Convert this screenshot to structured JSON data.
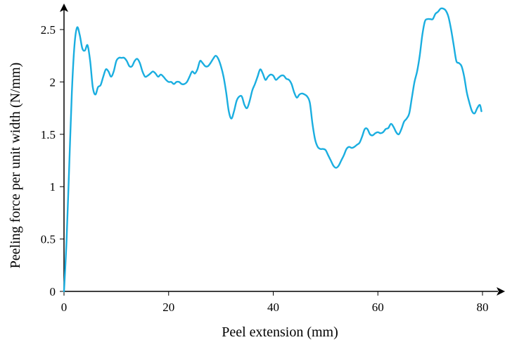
{
  "chart_data": {
    "type": "line",
    "title": "",
    "xlabel": "Peel extension  (mm)",
    "ylabel": "Peeling force per unit width (N/mm)",
    "xlim": [
      0,
      80
    ],
    "ylim": [
      0,
      2.5
    ],
    "grid": false,
    "x_ticks": [
      {
        "value": 0,
        "label": "0"
      },
      {
        "value": 20,
        "label": "20"
      },
      {
        "value": 40,
        "label": "40"
      },
      {
        "value": 60,
        "label": "60"
      },
      {
        "value": 80,
        "label": "80"
      }
    ],
    "y_ticks": [
      {
        "value": 0,
        "label": "0"
      },
      {
        "value": 0.5,
        "label": "0.5"
      },
      {
        "value": 1,
        "label": "1"
      },
      {
        "value": 1.5,
        "label": "1.5"
      },
      {
        "value": 2,
        "label": "2"
      },
      {
        "value": 2.5,
        "label": "2.5"
      }
    ],
    "series": [
      {
        "color": "#1AAEE0",
        "points": [
          [
            0,
            0
          ],
          [
            0.5,
            0.5
          ],
          [
            1,
            1.2
          ],
          [
            1.5,
            1.9
          ],
          [
            2,
            2.35
          ],
          [
            2.5,
            2.52
          ],
          [
            3,
            2.45
          ],
          [
            3.5,
            2.32
          ],
          [
            4,
            2.3
          ],
          [
            4.5,
            2.35
          ],
          [
            5,
            2.2
          ],
          [
            5.5,
            1.95
          ],
          [
            6,
            1.88
          ],
          [
            6.5,
            1.95
          ],
          [
            7,
            1.97
          ],
          [
            7.5,
            2.05
          ],
          [
            8,
            2.12
          ],
          [
            8.5,
            2.1
          ],
          [
            9,
            2.05
          ],
          [
            9.5,
            2.1
          ],
          [
            10,
            2.2
          ],
          [
            10.5,
            2.23
          ],
          [
            11,
            2.23
          ],
          [
            11.5,
            2.23
          ],
          [
            12,
            2.2
          ],
          [
            12.5,
            2.15
          ],
          [
            13,
            2.15
          ],
          [
            13.5,
            2.2
          ],
          [
            14,
            2.22
          ],
          [
            14.5,
            2.18
          ],
          [
            15,
            2.1
          ],
          [
            15.5,
            2.05
          ],
          [
            16,
            2.06
          ],
          [
            16.5,
            2.08
          ],
          [
            17,
            2.1
          ],
          [
            17.5,
            2.08
          ],
          [
            18,
            2.05
          ],
          [
            18.5,
            2.07
          ],
          [
            19,
            2.05
          ],
          [
            19.5,
            2.02
          ],
          [
            20,
            2.0
          ],
          [
            20.5,
            2.0
          ],
          [
            21,
            1.98
          ],
          [
            21.5,
            2.0
          ],
          [
            22,
            2.0
          ],
          [
            22.5,
            1.98
          ],
          [
            23,
            1.98
          ],
          [
            23.5,
            2.0
          ],
          [
            24,
            2.05
          ],
          [
            24.5,
            2.1
          ],
          [
            25,
            2.08
          ],
          [
            25.5,
            2.12
          ],
          [
            26,
            2.2
          ],
          [
            26.5,
            2.18
          ],
          [
            27,
            2.15
          ],
          [
            27.5,
            2.15
          ],
          [
            28,
            2.18
          ],
          [
            28.5,
            2.22
          ],
          [
            29,
            2.25
          ],
          [
            29.5,
            2.22
          ],
          [
            30,
            2.15
          ],
          [
            30.5,
            2.05
          ],
          [
            31,
            1.9
          ],
          [
            31.5,
            1.72
          ],
          [
            32,
            1.65
          ],
          [
            32.5,
            1.72
          ],
          [
            33,
            1.82
          ],
          [
            33.5,
            1.86
          ],
          [
            34,
            1.86
          ],
          [
            34.5,
            1.78
          ],
          [
            35,
            1.75
          ],
          [
            35.5,
            1.82
          ],
          [
            36,
            1.92
          ],
          [
            36.5,
            1.98
          ],
          [
            37,
            2.05
          ],
          [
            37.5,
            2.12
          ],
          [
            38,
            2.08
          ],
          [
            38.5,
            2.02
          ],
          [
            39,
            2.05
          ],
          [
            39.5,
            2.07
          ],
          [
            40,
            2.06
          ],
          [
            40.5,
            2.02
          ],
          [
            41,
            2.04
          ],
          [
            41.5,
            2.06
          ],
          [
            42,
            2.06
          ],
          [
            42.5,
            2.03
          ],
          [
            43,
            2.02
          ],
          [
            43.5,
            1.98
          ],
          [
            44,
            1.9
          ],
          [
            44.5,
            1.85
          ],
          [
            45,
            1.88
          ],
          [
            45.5,
            1.89
          ],
          [
            46,
            1.88
          ],
          [
            46.5,
            1.86
          ],
          [
            47,
            1.8
          ],
          [
            47.5,
            1.6
          ],
          [
            48,
            1.45
          ],
          [
            48.5,
            1.38
          ],
          [
            49,
            1.36
          ],
          [
            49.5,
            1.36
          ],
          [
            50,
            1.35
          ],
          [
            50.5,
            1.3
          ],
          [
            51,
            1.25
          ],
          [
            51.5,
            1.2
          ],
          [
            52,
            1.18
          ],
          [
            52.5,
            1.2
          ],
          [
            53,
            1.25
          ],
          [
            53.5,
            1.3
          ],
          [
            54,
            1.36
          ],
          [
            54.5,
            1.38
          ],
          [
            55,
            1.37
          ],
          [
            55.5,
            1.38
          ],
          [
            56,
            1.4
          ],
          [
            56.5,
            1.42
          ],
          [
            57,
            1.48
          ],
          [
            57.5,
            1.55
          ],
          [
            58,
            1.55
          ],
          [
            58.5,
            1.5
          ],
          [
            59,
            1.49
          ],
          [
            59.5,
            1.51
          ],
          [
            60,
            1.52
          ],
          [
            60.5,
            1.51
          ],
          [
            61,
            1.52
          ],
          [
            61.5,
            1.55
          ],
          [
            62,
            1.56
          ],
          [
            62.5,
            1.6
          ],
          [
            63,
            1.57
          ],
          [
            63.5,
            1.52
          ],
          [
            64,
            1.5
          ],
          [
            64.5,
            1.55
          ],
          [
            65,
            1.62
          ],
          [
            65.5,
            1.65
          ],
          [
            66,
            1.7
          ],
          [
            66.5,
            1.85
          ],
          [
            67,
            2.0
          ],
          [
            67.5,
            2.1
          ],
          [
            68,
            2.25
          ],
          [
            68.5,
            2.45
          ],
          [
            69,
            2.58
          ],
          [
            69.5,
            2.6
          ],
          [
            70,
            2.6
          ],
          [
            70.5,
            2.6
          ],
          [
            71,
            2.65
          ],
          [
            71.5,
            2.67
          ],
          [
            72,
            2.7
          ],
          [
            72.5,
            2.7
          ],
          [
            73,
            2.68
          ],
          [
            73.5,
            2.62
          ],
          [
            74,
            2.5
          ],
          [
            74.5,
            2.35
          ],
          [
            75,
            2.2
          ],
          [
            75.5,
            2.18
          ],
          [
            76,
            2.15
          ],
          [
            76.5,
            2.05
          ],
          [
            77,
            1.9
          ],
          [
            77.5,
            1.8
          ],
          [
            78,
            1.72
          ],
          [
            78.5,
            1.7
          ],
          [
            79,
            1.75
          ],
          [
            79.5,
            1.78
          ],
          [
            79.8,
            1.72
          ]
        ]
      }
    ]
  }
}
